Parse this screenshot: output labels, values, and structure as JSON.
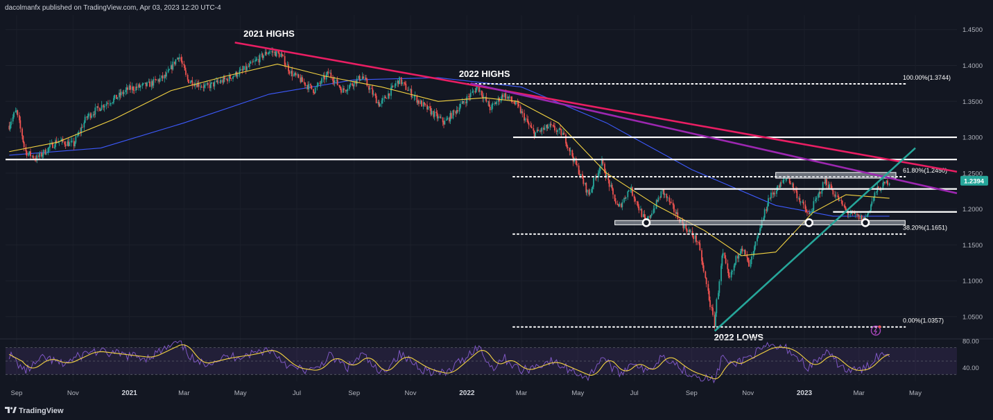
{
  "header": {
    "publisher": "dacolmanfx published on TradingView.com, Apr 03, 2023 12:20 UTC-4"
  },
  "footer": {
    "brand": "TradingView"
  },
  "colors": {
    "background": "#131722",
    "bull": "#26a69a",
    "bear": "#ef5350",
    "ma_short": "#f5d442",
    "ma_long": "#3d5afe",
    "downtrend": "#e91e63",
    "channel": "#9c27b0",
    "uptrend": "#26a69a",
    "rsi": "#7e57c2",
    "rsi_ma": "#f5d442",
    "last_price": "#26a69a"
  },
  "chart_data": [
    {
      "type": "candlestick",
      "symbol_last_price": "1.2394",
      "x_ticks": [
        "Sep",
        "Nov",
        "2021",
        "Mar",
        "May",
        "Jul",
        "Sep",
        "Nov",
        "2022",
        "Mar",
        "May",
        "Jul",
        "Sep",
        "Nov",
        "2023",
        "Mar",
        "May"
      ],
      "x_ticks_bold": [
        "2021",
        "2022",
        "2023"
      ],
      "y_ticks": [
        "1.4500",
        "1.4000",
        "1.3500",
        "1.3000",
        "1.2500",
        "1.2000",
        "1.1500",
        "1.1000",
        "1.0500"
      ],
      "ylim": [
        1.02,
        1.47
      ],
      "xlim": [
        "2020-08-20",
        "2023-06-15"
      ],
      "close_path": [
        [
          "2020-08-24",
          1.316
        ],
        [
          "2020-09-01",
          1.338
        ],
        [
          "2020-09-11",
          1.28
        ],
        [
          "2020-09-23",
          1.27
        ],
        [
          "2020-10-15",
          1.295
        ],
        [
          "2020-11-02",
          1.29
        ],
        [
          "2020-11-16",
          1.328
        ],
        [
          "2020-12-04",
          1.345
        ],
        [
          "2020-12-18",
          1.355
        ],
        [
          "2020-12-31",
          1.367
        ],
        [
          "2021-01-22",
          1.373
        ],
        [
          "2021-02-10",
          1.385
        ],
        [
          "2021-02-24",
          1.415
        ],
        [
          "2021-03-05",
          1.38
        ],
        [
          "2021-03-25",
          1.37
        ],
        [
          "2021-04-15",
          1.38
        ],
        [
          "2021-05-07",
          1.395
        ],
        [
          "2021-06-01",
          1.42
        ],
        [
          "2021-06-14",
          1.415
        ],
        [
          "2021-06-25",
          1.39
        ],
        [
          "2021-07-20",
          1.365
        ],
        [
          "2021-08-05",
          1.39
        ],
        [
          "2021-08-20",
          1.365
        ],
        [
          "2021-09-10",
          1.385
        ],
        [
          "2021-09-29",
          1.345
        ],
        [
          "2021-10-20",
          1.38
        ],
        [
          "2021-11-10",
          1.35
        ],
        [
          "2021-12-08",
          1.32
        ],
        [
          "2022-01-13",
          1.37
        ],
        [
          "2022-01-27",
          1.34
        ],
        [
          "2022-02-10",
          1.36
        ],
        [
          "2022-02-24",
          1.345
        ],
        [
          "2022-03-15",
          1.305
        ],
        [
          "2022-04-01",
          1.315
        ],
        [
          "2022-04-15",
          1.305
        ],
        [
          "2022-05-13",
          1.22
        ],
        [
          "2022-05-27",
          1.265
        ],
        [
          "2022-06-14",
          1.2
        ],
        [
          "2022-06-27",
          1.23
        ],
        [
          "2022-07-14",
          1.18
        ],
        [
          "2022-08-01",
          1.225
        ],
        [
          "2022-08-22",
          1.18
        ],
        [
          "2022-09-08",
          1.155
        ],
        [
          "2022-09-26",
          1.04
        ],
        [
          "2022-10-05",
          1.14
        ],
        [
          "2022-10-12",
          1.1
        ],
        [
          "2022-10-25",
          1.15
        ],
        [
          "2022-11-03",
          1.12
        ],
        [
          "2022-11-24",
          1.215
        ],
        [
          "2022-12-14",
          1.245
        ],
        [
          "2023-01-06",
          1.19
        ],
        [
          "2023-01-24",
          1.24
        ],
        [
          "2023-02-17",
          1.195
        ],
        [
          "2023-03-08",
          1.185
        ],
        [
          "2023-03-20",
          1.225
        ],
        [
          "2023-04-03",
          1.2394
        ]
      ],
      "ma_short_path": [
        [
          "2020-08-24",
          1.28
        ],
        [
          "2020-10-15",
          1.293
        ],
        [
          "2020-12-15",
          1.325
        ],
        [
          "2021-02-15",
          1.365
        ],
        [
          "2021-04-15",
          1.385
        ],
        [
          "2021-06-10",
          1.402
        ],
        [
          "2021-08-01",
          1.385
        ],
        [
          "2021-10-01",
          1.37
        ],
        [
          "2021-12-01",
          1.35
        ],
        [
          "2022-01-20",
          1.355
        ],
        [
          "2022-02-25",
          1.35
        ],
        [
          "2022-04-10",
          1.32
        ],
        [
          "2022-06-01",
          1.25
        ],
        [
          "2022-07-25",
          1.205
        ],
        [
          "2022-09-15",
          1.17
        ],
        [
          "2022-10-25",
          1.135
        ],
        [
          "2022-12-01",
          1.14
        ],
        [
          "2023-01-10",
          1.195
        ],
        [
          "2023-02-15",
          1.22
        ],
        [
          "2023-04-03",
          1.215
        ]
      ],
      "ma_long_path": [
        [
          "2020-08-24",
          1.275
        ],
        [
          "2020-12-01",
          1.285
        ],
        [
          "2021-03-01",
          1.32
        ],
        [
          "2021-06-01",
          1.36
        ],
        [
          "2021-09-01",
          1.38
        ],
        [
          "2021-12-01",
          1.383
        ],
        [
          "2022-03-01",
          1.37
        ],
        [
          "2022-06-01",
          1.32
        ],
        [
          "2022-09-01",
          1.255
        ],
        [
          "2022-12-01",
          1.205
        ],
        [
          "2023-02-01",
          1.19
        ],
        [
          "2023-04-03",
          1.19
        ]
      ],
      "trendlines": [
        {
          "name": "downtrend",
          "from": [
            "2021-04-25",
            1.432
          ],
          "to": [
            "2023-06-15",
            1.252
          ]
        },
        {
          "name": "channel",
          "from": [
            "2022-01-05",
            1.375
          ],
          "to": [
            "2023-06-15",
            1.222
          ]
        },
        {
          "name": "uptrend",
          "from": [
            "2022-09-26",
            1.03
          ],
          "to": [
            "2023-05-01",
            1.285
          ]
        }
      ],
      "levels": [
        {
          "name": "fib-100",
          "y": 1.3744,
          "style": "dotted",
          "from": "2022-01-01",
          "to": "2023-04-20",
          "label": "100.00%(1.3744)"
        },
        {
          "name": "fib-618",
          "y": 1.245,
          "style": "dotted",
          "from": "2022-02-20",
          "to": "2023-04-20",
          "label": "61.80%(1.2450)"
        },
        {
          "name": "fib-382",
          "y": 1.1651,
          "style": "dotted",
          "from": "2022-02-20",
          "to": "2023-04-20",
          "label": "38.20%(1.1651)"
        },
        {
          "name": "fib-0",
          "y": 1.0357,
          "style": "dotted",
          "from": "2022-02-20",
          "to": "2023-04-20",
          "label": "0.00%(1.0357)"
        },
        {
          "name": "resistance-130",
          "y": 1.3,
          "style": "solid",
          "from": "2022-02-20",
          "to": "2023-06-15",
          "label": ""
        },
        {
          "name": "resistance-127",
          "y": 1.269,
          "style": "solid",
          "from": "2020-08-20",
          "to": "2023-06-15",
          "label": ""
        },
        {
          "name": "support-1228",
          "y": 1.228,
          "style": "solid",
          "from": "2022-07-01",
          "to": "2023-06-15",
          "label": ""
        },
        {
          "name": "support-1196",
          "y": 1.196,
          "style": "solid",
          "from": "2023-02-01",
          "to": "2023-06-15",
          "label": ""
        }
      ],
      "zones": [
        {
          "name": "zone-top",
          "y1": 1.243,
          "y2": 1.251,
          "from": "2022-12-01",
          "to": "2023-04-10"
        },
        {
          "name": "zone-bottom",
          "y1": 1.178,
          "y2": 1.184,
          "from": "2022-06-10",
          "to": "2023-04-20"
        }
      ],
      "markers": [
        {
          "name": "pivot-jul-2022",
          "x": "2022-07-14",
          "y": 1.181
        },
        {
          "name": "pivot-jan-2023",
          "x": "2023-01-06",
          "y": 1.181
        },
        {
          "name": "pivot-mar-2023",
          "x": "2023-03-08",
          "y": 1.181
        }
      ],
      "annotations": [
        {
          "name": "label-2021-highs",
          "text": "2021 HIGHS",
          "x": "2021-06-01",
          "y": 1.44
        },
        {
          "name": "label-2022-highs",
          "text": "2022 HIGHS",
          "x": "2022-01-20",
          "y": 1.384
        },
        {
          "name": "label-2022-lows",
          "text": "2022 LOWS",
          "x": "2022-10-22",
          "y": 1.017
        }
      ]
    },
    {
      "type": "line",
      "name": "rsi-panel",
      "y_ticks": [
        "80.00",
        "40.00"
      ],
      "ylim": [
        20,
        82
      ],
      "levels": [
        70,
        50,
        30
      ],
      "rsi_path": [
        [
          "2020-08-24",
          60
        ],
        [
          "2020-09-10",
          35
        ],
        [
          "2020-10-01",
          55
        ],
        [
          "2020-10-20",
          45
        ],
        [
          "2020-11-20",
          65
        ],
        [
          "2020-12-20",
          60
        ],
        [
          "2021-01-20",
          55
        ],
        [
          "2021-02-24",
          78
        ],
        [
          "2021-03-15",
          45
        ],
        [
          "2021-04-15",
          55
        ],
        [
          "2021-05-10",
          60
        ],
        [
          "2021-06-01",
          68
        ],
        [
          "2021-06-25",
          40
        ],
        [
          "2021-07-20",
          35
        ],
        [
          "2021-08-05",
          58
        ],
        [
          "2021-08-25",
          40
        ],
        [
          "2021-09-10",
          60
        ],
        [
          "2021-09-29",
          30
        ],
        [
          "2021-10-20",
          60
        ],
        [
          "2021-11-15",
          38
        ],
        [
          "2021-12-08",
          30
        ],
        [
          "2022-01-13",
          72
        ],
        [
          "2022-01-28",
          40
        ],
        [
          "2022-02-10",
          55
        ],
        [
          "2022-03-01",
          35
        ],
        [
          "2022-04-01",
          50
        ],
        [
          "2022-05-13",
          25
        ],
        [
          "2022-05-27",
          58
        ],
        [
          "2022-06-14",
          30
        ],
        [
          "2022-07-01",
          50
        ],
        [
          "2022-07-14",
          32
        ],
        [
          "2022-08-01",
          60
        ],
        [
          "2022-08-25",
          35
        ],
        [
          "2022-09-26",
          20
        ],
        [
          "2022-10-05",
          60
        ],
        [
          "2022-10-12",
          42
        ],
        [
          "2022-11-24",
          72
        ],
        [
          "2022-12-14",
          68
        ],
        [
          "2023-01-06",
          40
        ],
        [
          "2023-01-24",
          62
        ],
        [
          "2023-02-17",
          35
        ],
        [
          "2023-03-08",
          38
        ],
        [
          "2023-03-20",
          58
        ],
        [
          "2023-04-03",
          62
        ]
      ]
    }
  ]
}
